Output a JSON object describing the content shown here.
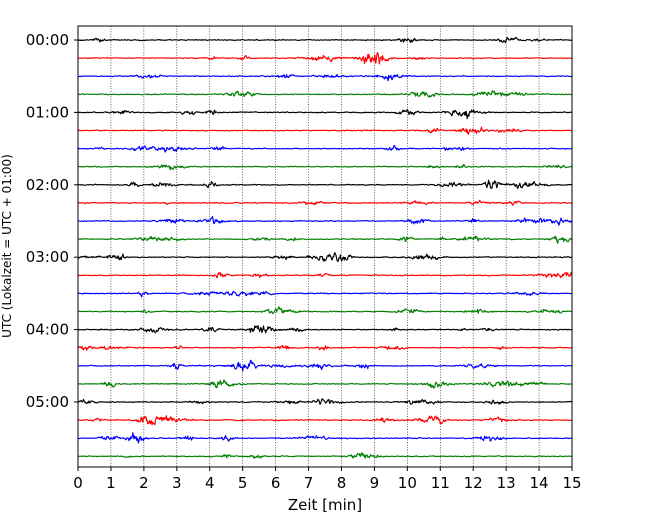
{
  "chart_data": {
    "type": "line",
    "title": "",
    "xlabel": "Zeit  [min]",
    "ylabel": "UTC (Lokalzeit = UTC + 01:00)",
    "xlim": [
      0,
      15
    ],
    "x_ticks": [
      "0",
      "1",
      "2",
      "3",
      "4",
      "5",
      "6",
      "7",
      "8",
      "9",
      "10",
      "11",
      "12",
      "13",
      "14",
      "15"
    ],
    "y_ticks": [
      "00:00",
      "01:00",
      "02:00",
      "03:00",
      "04:00",
      "05:00"
    ],
    "grid": "vertical dotted",
    "trace_interval_min": 15,
    "series": [
      {
        "start": "00:00",
        "color": "#000000"
      },
      {
        "start": "00:15",
        "color": "#ff0000"
      },
      {
        "start": "00:30",
        "color": "#0000ff"
      },
      {
        "start": "00:45",
        "color": "#007f00"
      },
      {
        "start": "01:00",
        "color": "#000000"
      },
      {
        "start": "01:15",
        "color": "#ff0000"
      },
      {
        "start": "01:30",
        "color": "#0000ff"
      },
      {
        "start": "01:45",
        "color": "#007f00"
      },
      {
        "start": "02:00",
        "color": "#000000"
      },
      {
        "start": "02:15",
        "color": "#ff0000"
      },
      {
        "start": "02:30",
        "color": "#0000ff"
      },
      {
        "start": "02:45",
        "color": "#007f00"
      },
      {
        "start": "03:00",
        "color": "#000000"
      },
      {
        "start": "03:15",
        "color": "#ff0000"
      },
      {
        "start": "03:30",
        "color": "#0000ff"
      },
      {
        "start": "03:45",
        "color": "#007f00"
      },
      {
        "start": "04:00",
        "color": "#000000"
      },
      {
        "start": "04:15",
        "color": "#ff0000"
      },
      {
        "start": "04:30",
        "color": "#0000ff"
      },
      {
        "start": "04:45",
        "color": "#007f00"
      },
      {
        "start": "05:00",
        "color": "#000000"
      },
      {
        "start": "05:15",
        "color": "#ff0000"
      },
      {
        "start": "05:30",
        "color": "#0000ff"
      },
      {
        "start": "05:45",
        "color": "#007f00"
      }
    ]
  }
}
